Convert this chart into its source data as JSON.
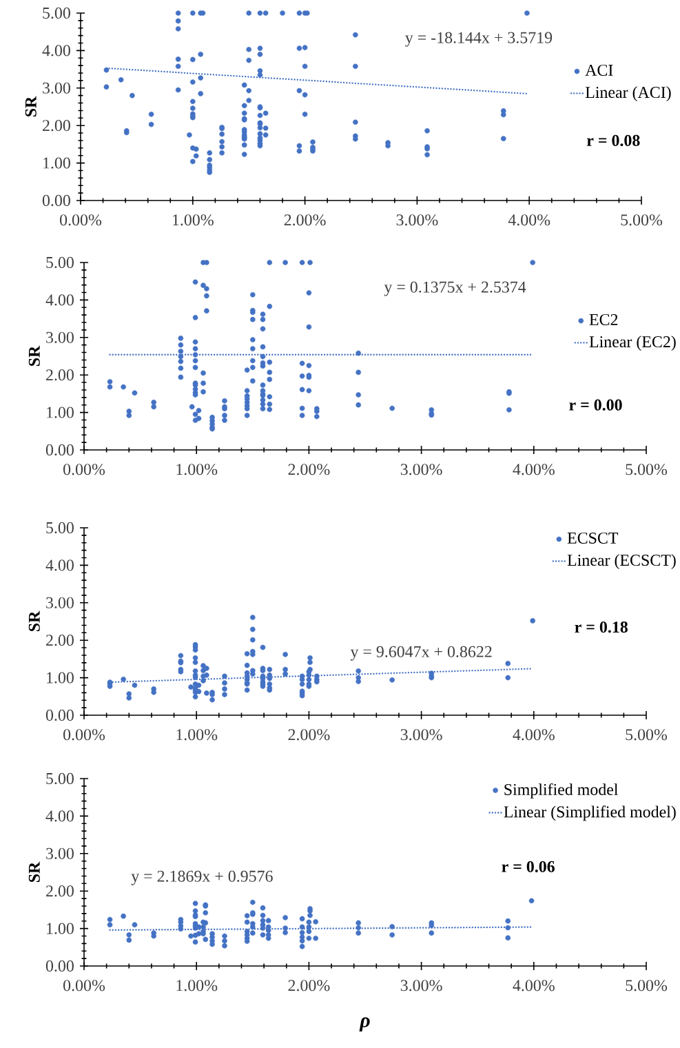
{
  "chart_data": [
    {
      "type": "scatter",
      "ylabel": "SR",
      "marker": "circle",
      "legend": "right",
      "xlim": [
        0,
        0.05
      ],
      "ylim": [
        0,
        5
      ],
      "xticks": [
        {
          "value": 0,
          "label": "0.00%"
        },
        {
          "value": 0.01,
          "label": "1.00%"
        },
        {
          "value": 0.02,
          "label": "2.00%"
        },
        {
          "value": 0.03,
          "label": "3.00%"
        },
        {
          "value": 0.04,
          "label": "4.00%"
        },
        {
          "value": 0.05,
          "label": "5.00%"
        }
      ],
      "yticks": [
        {
          "value": 0,
          "label": "0.00"
        },
        {
          "value": 1,
          "label": "1.00"
        },
        {
          "value": 2,
          "label": "2.00"
        },
        {
          "value": 3,
          "label": "3.00"
        },
        {
          "value": 4,
          "label": "4.00"
        },
        {
          "value": 5,
          "label": "5.00"
        }
      ],
      "annotations": [
        "y = -18.144x + 3.5719",
        "r = 0.08"
      ],
      "series": [
        {
          "name": "ACI",
          "color": "#4472c4",
          "x": [
            0.0023,
            0.0023,
            0.0036,
            0.0041,
            0.0041,
            0.0046,
            0.0063,
            0.0063,
            0.0087,
            0.0087,
            0.0087,
            0.0087,
            0.0087,
            0.0087,
            0.0097,
            0.01,
            0.01,
            0.01,
            0.01,
            0.01,
            0.01,
            0.01,
            0.01,
            0.01,
            0.01,
            0.0103,
            0.0103,
            0.0107,
            0.0107,
            0.0107,
            0.0107,
            0.0109,
            0.0115,
            0.0115,
            0.0115,
            0.0115,
            0.0115,
            0.0115,
            0.0126,
            0.0126,
            0.0126,
            0.0126,
            0.0126,
            0.0126,
            0.0146,
            0.0146,
            0.0146,
            0.0146,
            0.0146,
            0.0146,
            0.0146,
            0.0146,
            0.0146,
            0.0146,
            0.0146,
            0.0146,
            0.0146,
            0.015,
            0.015,
            0.015,
            0.015,
            0.015,
            0.016,
            0.016,
            0.016,
            0.016,
            0.016,
            0.016,
            0.016,
            0.016,
            0.016,
            0.016,
            0.016,
            0.016,
            0.016,
            0.016,
            0.016,
            0.016,
            0.0165,
            0.0165,
            0.0165,
            0.0165,
            0.018,
            0.0195,
            0.0195,
            0.0195,
            0.0195,
            0.0195,
            0.02,
            0.02,
            0.02,
            0.02,
            0.02,
            0.0202,
            0.0207,
            0.0207,
            0.0207,
            0.0207,
            0.0245,
            0.0245,
            0.0245,
            0.0245,
            0.0245,
            0.0274,
            0.0274,
            0.0309,
            0.0309,
            0.0309,
            0.0309,
            0.0377,
            0.0377,
            0.0377,
            0.0398
          ],
          "values": [
            3.48,
            3.03,
            3.22,
            1.86,
            1.81,
            2.8,
            2.3,
            2.03,
            5.0,
            4.79,
            4.58,
            3.77,
            3.58,
            2.95,
            1.75,
            5.0,
            3.76,
            3.16,
            2.64,
            2.46,
            2.31,
            2.25,
            2.21,
            1.4,
            1.04,
            1.37,
            1.19,
            5.0,
            3.9,
            3.27,
            2.85,
            5.0,
            1.27,
            1.09,
            0.94,
            0.88,
            0.81,
            0.75,
            1.95,
            1.92,
            1.77,
            1.57,
            1.43,
            1.27,
            3.08,
            2.53,
            2.33,
            2.18,
            2.15,
            1.89,
            1.83,
            1.75,
            1.7,
            1.67,
            1.64,
            1.48,
            1.23,
            5.0,
            4.03,
            3.74,
            2.93,
            2.67,
            5.0,
            4.06,
            3.9,
            3.46,
            3.35,
            2.5,
            2.47,
            2.27,
            2.07,
            2.04,
            1.94,
            1.78,
            1.67,
            1.6,
            1.52,
            1.46,
            5.0,
            2.33,
            1.93,
            1.75,
            5.0,
            5.0,
            4.06,
            2.93,
            1.46,
            1.32,
            5.0,
            4.08,
            3.58,
            2.82,
            2.3,
            5.0,
            1.56,
            1.42,
            1.37,
            1.32,
            4.42,
            3.58,
            2.09,
            1.72,
            1.64,
            1.54,
            1.46,
            1.86,
            1.43,
            1.38,
            1.22,
            2.39,
            2.29,
            1.65,
            5.0
          ]
        },
        {
          "name": "Linear (ACI)",
          "type": "line",
          "marker": "none",
          "line_style": "dotted",
          "color": "#4472c4",
          "x": [
            0.0023,
            0.0398
          ],
          "values": [
            3.53,
            2.85
          ]
        }
      ]
    },
    {
      "type": "scatter",
      "ylabel": "SR",
      "marker": "circle",
      "legend": "right",
      "xlim": [
        0,
        0.05
      ],
      "ylim": [
        0,
        5
      ],
      "xticks": [
        {
          "value": 0,
          "label": "0.00%"
        },
        {
          "value": 0.01,
          "label": "1.00%"
        },
        {
          "value": 0.02,
          "label": "2.00%"
        },
        {
          "value": 0.03,
          "label": "3.00%"
        },
        {
          "value": 0.04,
          "label": "4.00%"
        },
        {
          "value": 0.05,
          "label": "5.00%"
        }
      ],
      "yticks": [
        {
          "value": 0,
          "label": "0.00"
        },
        {
          "value": 1,
          "label": "1.00"
        },
        {
          "value": 2,
          "label": "2.00"
        },
        {
          "value": 3,
          "label": "3.00"
        },
        {
          "value": 4,
          "label": "4.00"
        },
        {
          "value": 5,
          "label": "5.00"
        }
      ],
      "annotations": [
        "y = 0.1375x + 2.5374",
        "r = 0.00"
      ],
      "series": [
        {
          "name": "EC2",
          "color": "#4472c4",
          "x": [
            0.0023,
            0.0023,
            0.0035,
            0.004,
            0.004,
            0.0045,
            0.0062,
            0.0062,
            0.0086,
            0.0086,
            0.0086,
            0.0086,
            0.0086,
            0.0086,
            0.0086,
            0.0096,
            0.0099,
            0.0099,
            0.0099,
            0.0099,
            0.0099,
            0.0099,
            0.0099,
            0.0099,
            0.0099,
            0.0099,
            0.0099,
            0.0099,
            0.0099,
            0.0099,
            0.0102,
            0.0102,
            0.0106,
            0.0106,
            0.0106,
            0.0106,
            0.0106,
            0.0109,
            0.0109,
            0.0109,
            0.0109,
            0.0114,
            0.0114,
            0.0114,
            0.0114,
            0.0114,
            0.0125,
            0.0125,
            0.0125,
            0.0125,
            0.0125,
            0.0145,
            0.0145,
            0.0145,
            0.0145,
            0.0145,
            0.0145,
            0.0145,
            0.0145,
            0.015,
            0.015,
            0.015,
            0.015,
            0.015,
            0.015,
            0.015,
            0.015,
            0.015,
            0.0159,
            0.0159,
            0.0159,
            0.0159,
            0.0159,
            0.0159,
            0.0159,
            0.0159,
            0.0159,
            0.0159,
            0.0159,
            0.0159,
            0.0159,
            0.0159,
            0.0165,
            0.0165,
            0.0165,
            0.0165,
            0.0165,
            0.0165,
            0.0165,
            0.0165,
            0.0179,
            0.0194,
            0.0194,
            0.0194,
            0.0194,
            0.0194,
            0.0194,
            0.02,
            0.02,
            0.02,
            0.02,
            0.02,
            0.02,
            0.0201,
            0.0207,
            0.0207,
            0.0207,
            0.0244,
            0.0244,
            0.0244,
            0.0244,
            0.0274,
            0.0309,
            0.0309,
            0.0309,
            0.0378,
            0.0378,
            0.0378,
            0.0399
          ],
          "values": [
            1.82,
            1.68,
            1.68,
            1.03,
            0.92,
            1.52,
            1.27,
            1.15,
            2.98,
            2.8,
            2.63,
            2.49,
            2.36,
            2.18,
            1.94,
            1.15,
            4.48,
            3.53,
            2.88,
            2.7,
            2.54,
            2.38,
            2.2,
            1.78,
            1.73,
            1.62,
            1.53,
            1.47,
            0.95,
            0.79,
            1.05,
            0.84,
            5.0,
            4.39,
            2.05,
            1.78,
            1.55,
            5.0,
            4.3,
            4.11,
            3.71,
            0.87,
            0.78,
            0.69,
            0.6,
            0.56,
            1.31,
            1.15,
            1.1,
            0.92,
            0.79,
            2.13,
            1.58,
            1.44,
            1.36,
            1.27,
            1.18,
            1.1,
            0.92,
            4.14,
            3.72,
            3.67,
            3.48,
            2.94,
            2.7,
            2.38,
            2.2,
            1.84,
            3.62,
            3.48,
            3.23,
            2.75,
            2.49,
            2.32,
            2.24,
            1.73,
            1.58,
            1.49,
            1.45,
            1.33,
            1.22,
            1.1,
            5.0,
            3.83,
            2.34,
            2.07,
            1.88,
            1.42,
            1.22,
            1.08,
            5.0,
            5.0,
            2.31,
            1.97,
            1.61,
            1.11,
            0.92,
            4.19,
            3.28,
            2.25,
            1.99,
            1.94,
            1.58,
            5.0,
            1.1,
            1.03,
            0.89,
            2.58,
            2.07,
            1.47,
            1.2,
            1.11,
            1.07,
            0.97,
            0.93,
            1.55,
            1.51,
            1.07,
            5.0
          ]
        },
        {
          "name": "Linear (EC2)",
          "type": "line",
          "marker": "none",
          "line_style": "dotted",
          "color": "#4472c4",
          "x": [
            0.0023,
            0.0398
          ],
          "values": [
            2.54,
            2.54
          ]
        }
      ]
    },
    {
      "type": "scatter",
      "ylabel": "SR",
      "marker": "circle",
      "legend": "top right",
      "xlim": [
        0,
        0.05
      ],
      "ylim": [
        0,
        5
      ],
      "xticks": [
        {
          "value": 0,
          "label": "0.00%"
        },
        {
          "value": 0.01,
          "label": "1.00%"
        },
        {
          "value": 0.02,
          "label": "2.00%"
        },
        {
          "value": 0.03,
          "label": "3.00%"
        },
        {
          "value": 0.04,
          "label": "4.00%"
        },
        {
          "value": 0.05,
          "label": "5.00%"
        }
      ],
      "yticks": [
        {
          "value": 0,
          "label": "0.00"
        },
        {
          "value": 1,
          "label": "1.00"
        },
        {
          "value": 2,
          "label": "2.00"
        },
        {
          "value": 3,
          "label": "3.00"
        },
        {
          "value": 4,
          "label": "4.00"
        },
        {
          "value": 5,
          "label": "5.00"
        }
      ],
      "annotations": [
        "y = 9.6047x + 0.8622",
        "r = 0.18"
      ],
      "series": [
        {
          "name": "ECSCT",
          "color": "#4472c4",
          "x": [
            0.0023,
            0.0023,
            0.0023,
            0.0035,
            0.004,
            0.004,
            0.0045,
            0.0062,
            0.0062,
            0.0086,
            0.0086,
            0.0086,
            0.0086,
            0.0086,
            0.0095,
            0.0099,
            0.0099,
            0.0099,
            0.0099,
            0.0099,
            0.0099,
            0.0099,
            0.0099,
            0.0099,
            0.0099,
            0.0099,
            0.0099,
            0.0099,
            0.0102,
            0.0102,
            0.0106,
            0.0106,
            0.0106,
            0.0106,
            0.0109,
            0.0109,
            0.0109,
            0.0114,
            0.0114,
            0.0114,
            0.0125,
            0.0125,
            0.0125,
            0.0125,
            0.0145,
            0.0145,
            0.0145,
            0.0145,
            0.0145,
            0.0145,
            0.0145,
            0.0145,
            0.015,
            0.015,
            0.015,
            0.015,
            0.015,
            0.015,
            0.015,
            0.0159,
            0.0159,
            0.0159,
            0.0159,
            0.0159,
            0.0159,
            0.0159,
            0.0159,
            0.0165,
            0.0165,
            0.0165,
            0.0165,
            0.0165,
            0.0165,
            0.0179,
            0.0179,
            0.0179,
            0.0194,
            0.0194,
            0.0194,
            0.0194,
            0.0194,
            0.0194,
            0.02,
            0.02,
            0.02,
            0.02,
            0.02,
            0.0201,
            0.0201,
            0.0201,
            0.0207,
            0.0207,
            0.0207,
            0.0244,
            0.0244,
            0.0244,
            0.0274,
            0.0309,
            0.0309,
            0.0309,
            0.0377,
            0.0377,
            0.0399
          ],
          "values": [
            0.88,
            0.83,
            0.77,
            0.96,
            0.57,
            0.46,
            0.8,
            0.7,
            0.61,
            1.59,
            1.44,
            1.4,
            1.22,
            1.16,
            0.75,
            1.88,
            1.82,
            1.74,
            1.53,
            1.41,
            1.18,
            1.07,
            1.01,
            0.83,
            0.73,
            0.67,
            0.61,
            0.49,
            0.8,
            0.63,
            1.32,
            1.19,
            1.04,
            0.92,
            1.25,
            1.07,
            0.59,
            0.61,
            0.55,
            0.41,
            1.04,
            0.86,
            0.7,
            0.55,
            1.64,
            1.33,
            1.13,
            1.04,
            0.95,
            0.86,
            0.83,
            0.67,
            2.61,
            2.29,
            2.01,
            1.7,
            1.62,
            1.19,
            1.1,
            1.81,
            1.25,
            1.19,
            1.04,
            0.98,
            0.89,
            0.83,
            0.77,
            1.22,
            1.07,
            0.98,
            0.83,
            0.73,
            0.67,
            1.62,
            1.22,
            1.1,
            1.04,
            0.95,
            0.83,
            0.64,
            0.58,
            0.52,
            1.16,
            1.07,
            0.95,
            0.83,
            0.77,
            1.53,
            1.41,
            1.22,
            1.04,
            0.95,
            0.89,
            1.18,
            1.0,
            0.9,
            0.94,
            1.12,
            1.05,
            1.0,
            1.38,
            1.0,
            2.52
          ]
        },
        {
          "name": "Linear (ECSCT)",
          "type": "line",
          "marker": "none",
          "line_style": "dotted",
          "color": "#4472c4",
          "x": [
            0.0023,
            0.0398
          ],
          "values": [
            0.88,
            1.24
          ]
        }
      ]
    },
    {
      "type": "scatter",
      "ylabel": "SR",
      "xlabel": "ρ",
      "marker": "circle",
      "legend": "top right",
      "xlim": [
        0,
        0.05
      ],
      "ylim": [
        0,
        5
      ],
      "xticks": [
        {
          "value": 0,
          "label": "0.00%"
        },
        {
          "value": 0.01,
          "label": "1.00%"
        },
        {
          "value": 0.02,
          "label": "2.00%"
        },
        {
          "value": 0.03,
          "label": "3.00%"
        },
        {
          "value": 0.04,
          "label": "4.00%"
        },
        {
          "value": 0.05,
          "label": "5.00%"
        }
      ],
      "yticks": [
        {
          "value": 0,
          "label": "0.00"
        },
        {
          "value": 1,
          "label": "1.00"
        },
        {
          "value": 2,
          "label": "2.00"
        },
        {
          "value": 3,
          "label": "3.00"
        },
        {
          "value": 4,
          "label": "4.00"
        },
        {
          "value": 5,
          "label": "5.00"
        }
      ],
      "annotations": [
        "y = 2.1869x + 0.9576",
        "r = 0.06"
      ],
      "series": [
        {
          "name": "Simplified model",
          "color": "#4472c4",
          "x": [
            0.0023,
            0.0023,
            0.0035,
            0.004,
            0.004,
            0.0045,
            0.0062,
            0.0062,
            0.0086,
            0.0086,
            0.0086,
            0.0086,
            0.0095,
            0.0099,
            0.0099,
            0.0099,
            0.0099,
            0.0099,
            0.0099,
            0.0099,
            0.0099,
            0.0099,
            0.0102,
            0.0102,
            0.0106,
            0.0106,
            0.0106,
            0.0106,
            0.0108,
            0.0108,
            0.0108,
            0.0108,
            0.0108,
            0.0114,
            0.0114,
            0.0114,
            0.0114,
            0.0125,
            0.0125,
            0.0125,
            0.0145,
            0.0145,
            0.0145,
            0.0145,
            0.0145,
            0.0145,
            0.015,
            0.015,
            0.015,
            0.015,
            0.015,
            0.015,
            0.0159,
            0.0159,
            0.0159,
            0.0159,
            0.0159,
            0.0159,
            0.0164,
            0.0164,
            0.0164,
            0.0164,
            0.0164,
            0.0179,
            0.0179,
            0.0179,
            0.0194,
            0.0194,
            0.0194,
            0.0194,
            0.0194,
            0.0194,
            0.02,
            0.02,
            0.02,
            0.02,
            0.0201,
            0.0201,
            0.0201,
            0.0206,
            0.0206,
            0.0244,
            0.0244,
            0.0244,
            0.0274,
            0.0274,
            0.0309,
            0.0309,
            0.0309,
            0.0377,
            0.0377,
            0.0377,
            0.0398
          ],
          "values": [
            1.24,
            1.1,
            1.33,
            0.83,
            0.69,
            1.1,
            0.88,
            0.8,
            1.24,
            1.17,
            1.07,
            0.99,
            0.8,
            1.67,
            1.47,
            1.36,
            1.32,
            1.13,
            1.07,
            1.01,
            0.82,
            0.64,
            1.04,
            0.86,
            1.17,
            1.04,
            0.92,
            0.86,
            1.63,
            1.6,
            1.42,
            1.15,
            0.71,
            0.86,
            0.77,
            0.67,
            0.58,
            0.8,
            0.67,
            0.54,
            1.34,
            1.17,
            0.92,
            0.83,
            0.74,
            0.66,
            1.7,
            1.42,
            1.38,
            1.13,
            1.04,
            0.88,
            1.55,
            1.35,
            1.21,
            1.1,
            1.01,
            0.83,
            1.21,
            1.04,
            0.95,
            0.83,
            0.74,
            1.29,
            1.01,
            0.89,
            1.26,
            1.04,
            0.89,
            0.77,
            0.67,
            0.52,
            1.17,
            1.04,
            0.92,
            0.74,
            1.53,
            1.47,
            1.35,
            1.18,
            0.74,
            1.15,
            1.02,
            0.88,
            1.05,
            0.83,
            1.15,
            1.08,
            0.88,
            1.2,
            1.02,
            0.75,
            1.74
          ]
        },
        {
          "name": "Linear (Simplified model)",
          "type": "line",
          "marker": "none",
          "line_style": "dotted",
          "color": "#4472c4",
          "x": [
            0.0023,
            0.0398
          ],
          "values": [
            0.96,
            1.04
          ]
        }
      ]
    }
  ]
}
